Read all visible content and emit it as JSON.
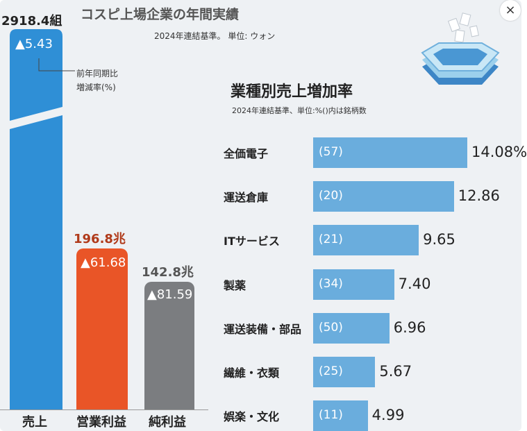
{
  "close_icon": "×",
  "header": {
    "title": "コスピ上場企業の年間実績",
    "subtitle": "2024年連結基準。 単位: ウォン"
  },
  "left_chart": {
    "note_line1": "前年同期比",
    "note_line2": "増減率(%)",
    "items": [
      {
        "category": "売上",
        "value": 2918.4,
        "value_label": "2918.4組",
        "growth": 5.43,
        "growth_label": "▲5.43",
        "color": "#2f8fd6",
        "value_color": "#2a6fb0"
      },
      {
        "category": "営業利益",
        "value": 196.8,
        "value_label": "196.8兆",
        "growth": 61.68,
        "growth_label": "▲61.68",
        "color": "#e95527",
        "value_color": "#b03a1a"
      },
      {
        "category": "純利益",
        "value": 142.8,
        "value_label": "142.8兆",
        "growth": 81.59,
        "growth_label": "▲81.59",
        "color": "#7b7d80",
        "value_color": "#555555"
      }
    ]
  },
  "chart_data": {
    "type": "bar",
    "title": "業種別売上増加率",
    "subtitle": "2024年連結基準、単位:%()内は銘柄数",
    "categories": [
      "全価電子",
      "運送倉庫",
      "ITサービス",
      "製薬",
      "運送装備・部品",
      "繊維・衣類",
      "娯楽・文化"
    ],
    "values": [
      14.08,
      12.86,
      9.65,
      7.4,
      6.96,
      5.67,
      4.99
    ],
    "value_labels": [
      "14.08%",
      "12.86",
      "9.65",
      "7.40",
      "6.96",
      "5.67",
      "4.99"
    ],
    "counts": [
      "(57)",
      "(20)",
      "(21)",
      "(34)",
      "(50)",
      "(25)",
      "(11)"
    ],
    "bar_color": "#6aaddd"
  }
}
